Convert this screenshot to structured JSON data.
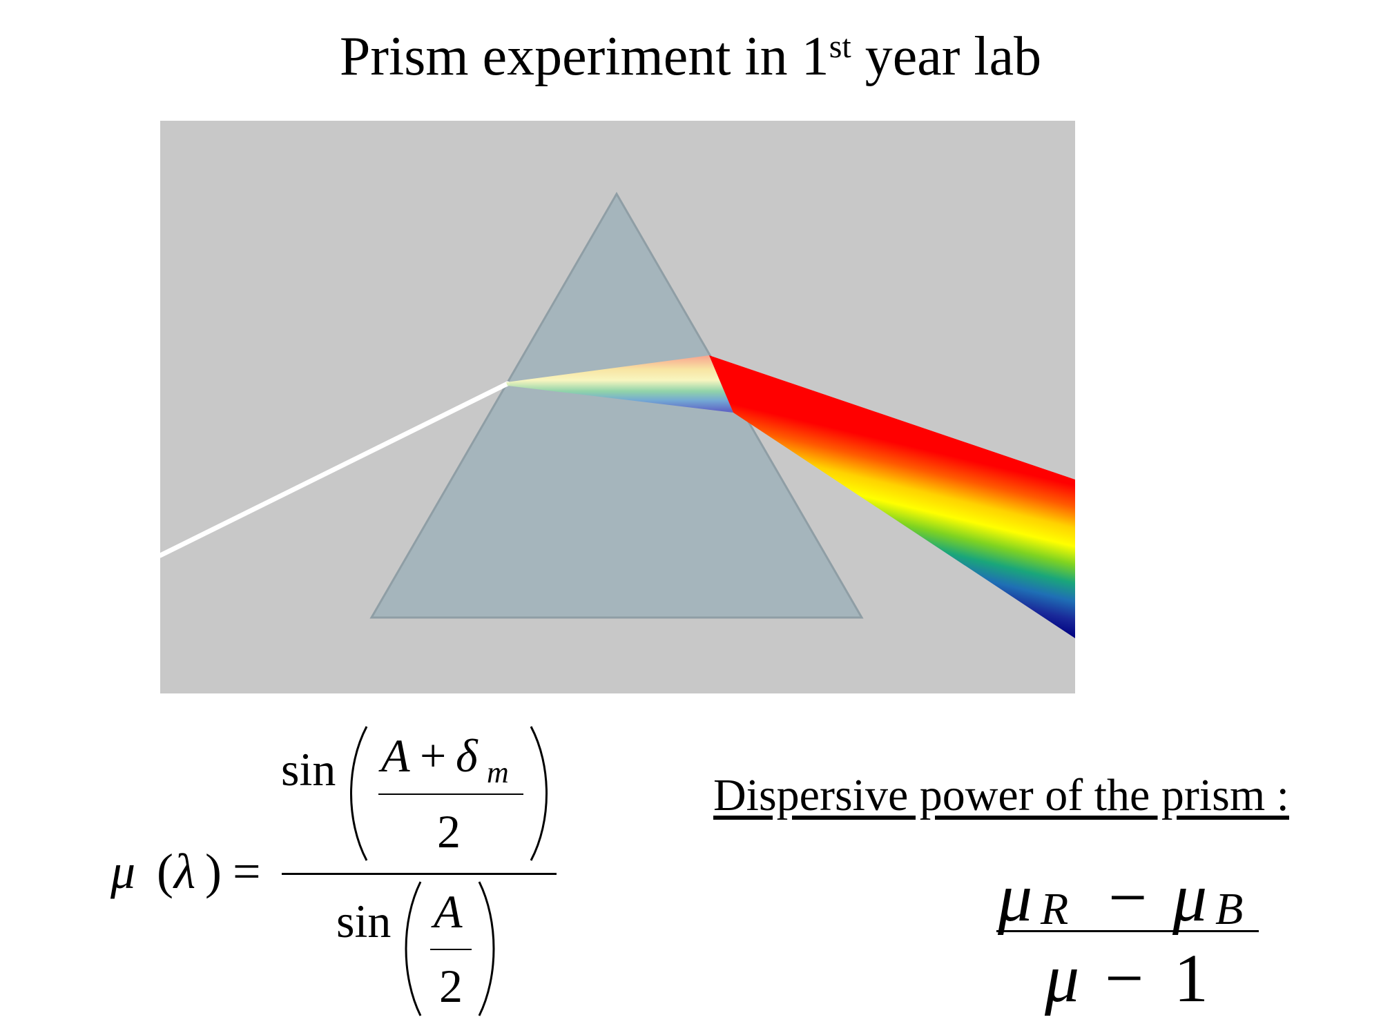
{
  "title": {
    "main": "Prism experiment in 1",
    "sup": "st",
    "rest": " year lab"
  },
  "colors": {
    "background": "#c8c8c8",
    "prism_fill": "#a5b5bc",
    "prism_edge": "#8f9ea5",
    "incident_beam": "#ffffff",
    "spectrum": [
      "#ff0000",
      "#ff7a00",
      "#ffff00",
      "#7fd321",
      "#1aa67a",
      "#1f6fb5",
      "#1a2a9a",
      "#000080"
    ]
  },
  "formula_left": {
    "mu": "μ",
    "lambda": "λ",
    "equals": "=",
    "sin": "sin",
    "A": "A",
    "plus": "+",
    "delta": "δ",
    "m": "m",
    "two": "2"
  },
  "dispersive": {
    "heading": "Dispersive power of the prism :",
    "mu": "μ",
    "R": "R",
    "minus": "−",
    "B": "B",
    "one": "1"
  }
}
